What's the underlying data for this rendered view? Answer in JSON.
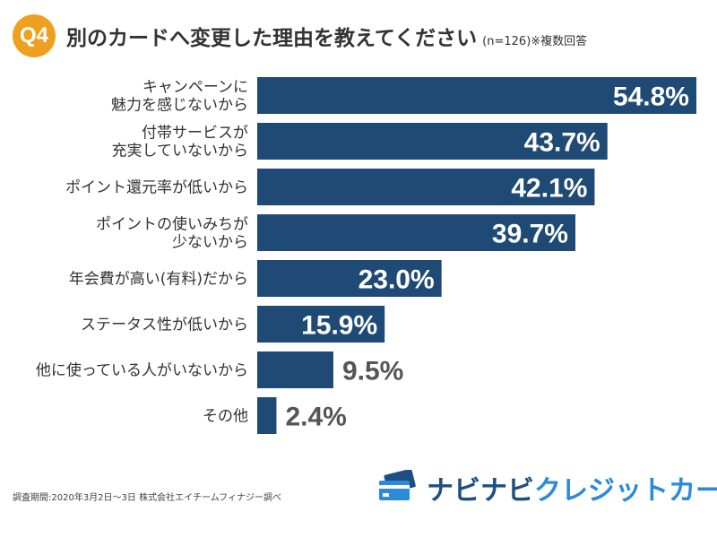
{
  "header": {
    "badge": "Q4",
    "title": "別のカードへ変更した理由を教えてください",
    "note": "(n=126)※複数回答"
  },
  "chart_data": {
    "type": "bar",
    "orientation": "horizontal",
    "unit": "%",
    "categories": [
      [
        "キャンペーンに",
        "魅力を感じないから"
      ],
      [
        "付帯サービスが",
        "充実していないから"
      ],
      [
        "ポイント還元率が低いから"
      ],
      [
        "ポイントの使いみちが",
        "少ないから"
      ],
      [
        "年会費が高い(有料)だから"
      ],
      [
        "ステータス性が低いから"
      ],
      [
        "他に使っている人がいないから"
      ],
      [
        "その他"
      ]
    ],
    "values": [
      54.8,
      43.7,
      42.1,
      39.7,
      23.0,
      15.9,
      9.5,
      2.4
    ],
    "value_labels": [
      "54.8%",
      "43.7%",
      "42.1%",
      "39.7%",
      "23.0%",
      "15.9%",
      "9.5%",
      "2.4%"
    ],
    "xlim": [
      0,
      54.8
    ],
    "grid": false,
    "bar_color": "#1e4a75"
  },
  "footnote": "調査期間:2020年3月2日〜3日 株式会社エイチームフィナジー調べ",
  "logo": {
    "text_a": "ナビナビ",
    "text_b": "クレジットカード",
    "icon": "credit-card-icon"
  },
  "colors": {
    "badge": "#f0a020",
    "bar": "#1e4a75",
    "label_outside": "#555555",
    "label_inside": "#ffffff",
    "logo_dark": "#1e4f82",
    "logo_light": "#2b8ad9"
  }
}
